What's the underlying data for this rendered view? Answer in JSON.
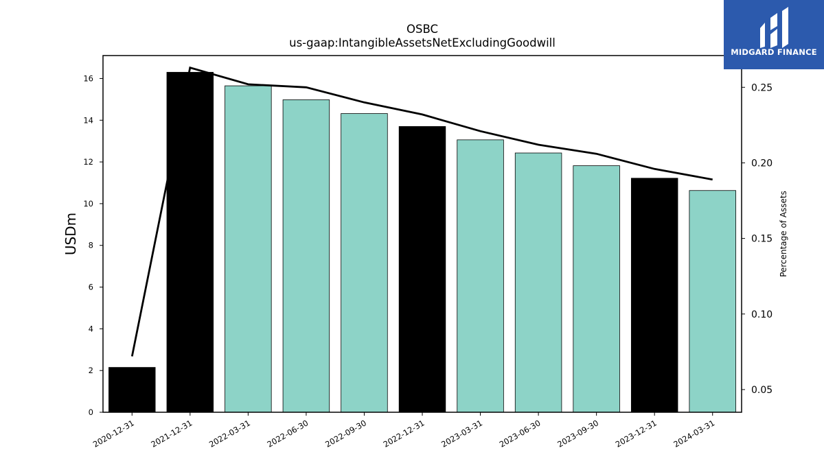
{
  "logo": {
    "text": "MIDGARD FINANCE",
    "background": "#2c5aad"
  },
  "chart_data": {
    "type": "bar",
    "title": "OSBC",
    "subtitle": "us-gaap:IntangibleAssetsNetExcludingGoodwill",
    "ylabel": "USDm",
    "y2label": "Percentage of Assets",
    "categories": [
      "2020-12-31",
      "2021-12-31",
      "2022-03-31",
      "2022-06-30",
      "2022-09-30",
      "2022-12-31",
      "2023-03-31",
      "2023-06-30",
      "2023-09-30",
      "2023-12-31",
      "2024-03-31"
    ],
    "values": [
      2.15,
      16.3,
      15.65,
      14.98,
      14.32,
      13.7,
      13.06,
      12.43,
      11.82,
      11.22,
      10.63
    ],
    "bar_colors": [
      "#000000",
      "#000000",
      "#8dd3c7",
      "#8dd3c7",
      "#8dd3c7",
      "#000000",
      "#8dd3c7",
      "#8dd3c7",
      "#8dd3c7",
      "#000000",
      "#8dd3c7"
    ],
    "line_values": [
      0.072,
      0.263,
      0.252,
      0.25,
      0.24,
      0.232,
      0.221,
      0.212,
      0.206,
      0.196,
      0.189
    ],
    "ylim": [
      0,
      17.1
    ],
    "yticks": [
      0,
      2,
      4,
      6,
      8,
      10,
      12,
      14,
      16
    ],
    "y2lim": [
      0.035,
      0.271
    ],
    "y2ticks": [
      "0.05",
      "0.10",
      "0.15",
      "0.20",
      "0.25"
    ],
    "grid": false
  }
}
